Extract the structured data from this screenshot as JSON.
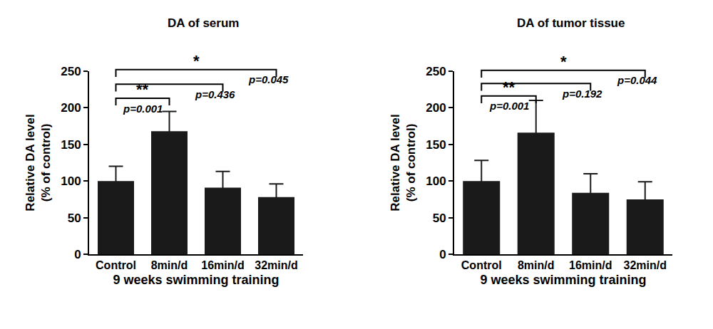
{
  "chart_data": [
    {
      "type": "bar",
      "title": "DA of serum",
      "x_label": "9 weeks swimming training",
      "y_label": "Relative DA level\n(% of control)",
      "categories": [
        "Control",
        "8min/d",
        "16min/d",
        "32min/d"
      ],
      "values": [
        100,
        168,
        91,
        78
      ],
      "errors": [
        20,
        27,
        22,
        18
      ],
      "color": "#1a1a1a",
      "ylim": [
        0,
        250
      ],
      "yticks": [
        0,
        50,
        100,
        150,
        200,
        250
      ],
      "grid": false,
      "comparisons": [
        {
          "from": "Control",
          "to": "8min/d",
          "height": 213,
          "label": "**",
          "p_label": "p=0.001"
        },
        {
          "from": "Control",
          "to": "16min/d",
          "height": 232,
          "p_label": "p=0.436"
        },
        {
          "from": "Control",
          "to": "32min/d",
          "height": 252,
          "label": "*",
          "p_label": "p=0.045"
        }
      ]
    },
    {
      "type": "bar",
      "title": "DA of tumor tissue",
      "x_label": "9 weeks swimming training",
      "y_label": "Relative DA level\n(% of control)",
      "categories": [
        "Control",
        "8min/d",
        "16min/d",
        "32min/d"
      ],
      "values": [
        100,
        166,
        84,
        75
      ],
      "errors": [
        28,
        44,
        26,
        24
      ],
      "color": "#1a1a1a",
      "ylim": [
        0,
        250
      ],
      "yticks": [
        0,
        50,
        100,
        150,
        200,
        250
      ],
      "grid": false,
      "comparisons": [
        {
          "from": "Control",
          "to": "8min/d",
          "height": 216,
          "label": "**",
          "p_label": "p=0.001"
        },
        {
          "from": "Control",
          "to": "16min/d",
          "height": 233,
          "p_label": "p=0.192"
        },
        {
          "from": "Control",
          "to": "32min/d",
          "height": 251,
          "label": "*",
          "p_label": "p=0.044"
        }
      ]
    }
  ]
}
